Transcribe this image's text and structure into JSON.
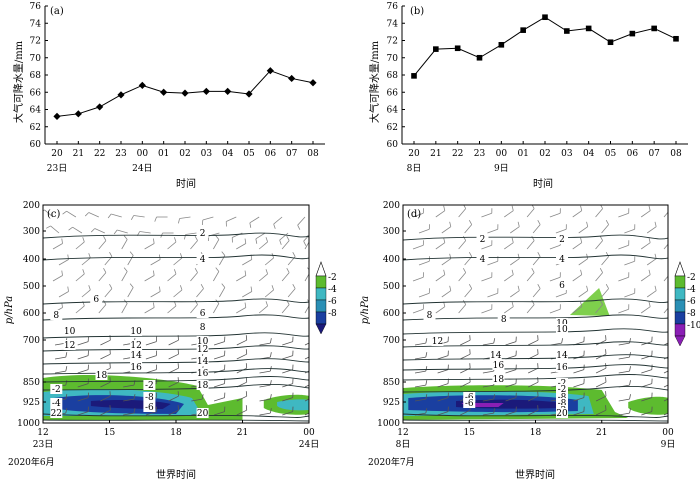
{
  "chart_data": [
    {
      "panel": "(a)",
      "type": "line",
      "x": [
        "20",
        "21",
        "22",
        "23",
        "00",
        "01",
        "02",
        "03",
        "04",
        "05",
        "06",
        "07",
        "08"
      ],
      "x_dates": [
        "23日",
        "",
        "",
        "",
        "24日",
        "",
        "",
        "",
        "",
        "",
        "",
        "",
        ""
      ],
      "values": [
        63.2,
        63.5,
        64.3,
        65.7,
        66.8,
        66.0,
        65.9,
        66.1,
        66.1,
        65.8,
        68.5,
        67.6,
        67.1
      ],
      "xlabel": "时间",
      "ylabel": "大气可降水量/mm",
      "ylim": [
        60,
        76
      ],
      "yticks": [
        60,
        62,
        64,
        66,
        68,
        70,
        72,
        74,
        76
      ],
      "marker": "diamond"
    },
    {
      "panel": "(b)",
      "type": "line",
      "x": [
        "20",
        "21",
        "22",
        "23",
        "00",
        "01",
        "02",
        "03",
        "04",
        "05",
        "06",
        "07",
        "08"
      ],
      "x_dates": [
        "8日",
        "",
        "",
        "",
        "9日",
        "",
        "",
        "",
        "",
        "",
        "",
        "",
        ""
      ],
      "values": [
        67.9,
        71.0,
        71.1,
        70.0,
        71.5,
        73.2,
        74.7,
        73.1,
        73.4,
        71.8,
        72.8,
        73.4,
        72.2
      ],
      "xlabel": "时间",
      "ylabel": "大气可降水量/mm",
      "ylim": [
        60,
        76
      ],
      "yticks": [
        60,
        62,
        64,
        66,
        68,
        70,
        72,
        74,
        76
      ],
      "marker": "square"
    },
    {
      "panel": "(c)",
      "type": "heatmap",
      "ylabel": "p/hPa",
      "xlabel": "世界时间",
      "date_label": "2020年6月",
      "x_ticks": [
        "12",
        "15",
        "18",
        "21",
        "00"
      ],
      "x_dates": [
        "23日",
        "",
        "",
        "",
        "24日"
      ],
      "y_ticks": [
        "200",
        "300",
        "400",
        "500",
        "600",
        "700",
        "850",
        "925",
        "1000"
      ],
      "colorbar_levels": [
        "-2",
        "-4",
        "-6",
        "-8"
      ],
      "contour_labels": [
        "2",
        "4",
        "6",
        "6",
        "8",
        "8",
        "10",
        "10",
        "10",
        "12",
        "12",
        "12",
        "14",
        "14",
        "16",
        "16",
        "18",
        "18",
        "-2",
        "-2",
        "-4",
        "-6",
        "-8",
        "22",
        "20"
      ]
    },
    {
      "panel": "(d)",
      "type": "heatmap",
      "ylabel": "p/hPa",
      "xlabel": "世界时间",
      "date_label": "2020年7月",
      "x_ticks": [
        "12",
        "15",
        "18",
        "21",
        "00"
      ],
      "x_dates": [
        "8日",
        "",
        "",
        "",
        "9日"
      ],
      "y_ticks": [
        "200",
        "300",
        "400",
        "500",
        "600",
        "700",
        "850",
        "925",
        "1000"
      ],
      "colorbar_levels": [
        "-2",
        "-4",
        "-6",
        "-8",
        "-10"
      ],
      "contour_labels": [
        "2",
        "2",
        "4",
        "4",
        "6",
        "8",
        "8",
        "10",
        "10",
        "12",
        "14",
        "14",
        "16",
        "16",
        "18",
        "-2",
        "-2",
        "-6",
        "-8",
        "-6",
        "-8",
        "-2",
        "20"
      ]
    }
  ],
  "colors": {
    "green": "#5dbb2f",
    "lightgreen": "#7ecf4c",
    "cyan": "#3fb8c2",
    "teal": "#2a8fb5",
    "blue": "#1a3fa0",
    "navy": "#1b1a7a",
    "purple": "#8a1fb5"
  }
}
